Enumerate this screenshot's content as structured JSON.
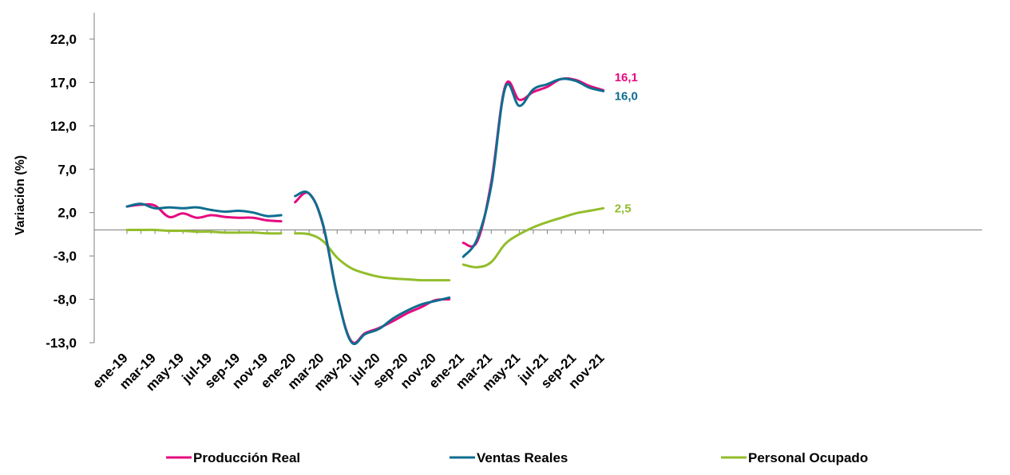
{
  "chart_data": {
    "type": "line",
    "ylabel": "Variación (%)",
    "xlabel": "",
    "ylim": [
      -13,
      26
    ],
    "yticks": [
      "22,0",
      "17,0",
      "12,0",
      "7,0",
      "2,0",
      "-3,0",
      "-8,0",
      "-13,0"
    ],
    "ytick_values": [
      22,
      17,
      12,
      7,
      2,
      -3,
      -8,
      -13
    ],
    "xtick_labels": [
      "ene-19",
      "mar-19",
      "may-19",
      "jul-19",
      "sep-19",
      "nov-19",
      "ene-20",
      "mar-20",
      "may-20",
      "jul-20",
      "sep-20",
      "nov-20",
      "ene-21",
      "mar-21",
      "may-21",
      "jul-21",
      "sep-21",
      "nov-21"
    ],
    "grid": false,
    "legend_position": "bottom",
    "segments": [
      {
        "label": "2019",
        "months": [
          "ene-19",
          "feb-19",
          "mar-19",
          "abr-19",
          "may-19",
          "jun-19",
          "jul-19",
          "ago-19",
          "sep-19",
          "oct-19",
          "nov-19",
          "dic-19"
        ]
      },
      {
        "label": "2020",
        "months": [
          "ene-20",
          "feb-20",
          "mar-20",
          "abr-20",
          "may-20",
          "jun-20",
          "jul-20",
          "ago-20",
          "sep-20",
          "oct-20",
          "nov-20",
          "dic-20"
        ]
      },
      {
        "label": "2021",
        "months": [
          "ene-21",
          "feb-21",
          "mar-21",
          "abr-21",
          "may-21",
          "jun-21",
          "jul-21",
          "ago-21",
          "sep-21",
          "oct-21",
          "nov-21"
        ]
      }
    ],
    "series": [
      {
        "name": "Producción Real",
        "color": "#E5097F",
        "end_label": "16,1",
        "values": [
          [
            2.7,
            2.9,
            2.8,
            1.5,
            1.9,
            1.4,
            1.7,
            1.5,
            1.4,
            1.4,
            1.1,
            1.0
          ],
          [
            3.2,
            4.2,
            0.5,
            -7.5,
            -12.8,
            -11.9,
            -11.3,
            -10.5,
            -9.6,
            -8.9,
            -8.1,
            -8.0
          ],
          [
            -1.5,
            -1.3,
            5.5,
            16.6,
            15.0,
            15.9,
            16.5,
            17.4,
            17.3,
            16.6,
            16.1
          ]
        ]
      },
      {
        "name": "Ventas Reales",
        "color": "#0E6E8F",
        "end_label": "16,0",
        "values": [
          [
            2.7,
            3.0,
            2.5,
            2.6,
            2.5,
            2.6,
            2.3,
            2.1,
            2.2,
            2.0,
            1.6,
            1.7
          ],
          [
            3.9,
            4.2,
            0.6,
            -7.5,
            -12.9,
            -12.0,
            -11.4,
            -10.2,
            -9.3,
            -8.6,
            -8.2,
            -7.8
          ],
          [
            -3.1,
            -1.0,
            5.1,
            16.4,
            14.3,
            16.2,
            16.8,
            17.4,
            17.2,
            16.4,
            16.0
          ]
        ]
      },
      {
        "name": "Personal Ocupado",
        "color": "#92BD2B",
        "end_label": "2,5",
        "values": [
          [
            0.0,
            0.0,
            0.0,
            -0.1,
            -0.1,
            -0.2,
            -0.2,
            -0.3,
            -0.3,
            -0.3,
            -0.4,
            -0.4
          ],
          [
            -0.4,
            -0.5,
            -1.3,
            -3.2,
            -4.4,
            -5.0,
            -5.4,
            -5.6,
            -5.7,
            -5.8,
            -5.8,
            -5.8
          ],
          [
            -4.0,
            -4.3,
            -3.7,
            -1.6,
            -0.5,
            0.3,
            0.9,
            1.4,
            1.9,
            2.2,
            2.5
          ]
        ]
      }
    ]
  }
}
